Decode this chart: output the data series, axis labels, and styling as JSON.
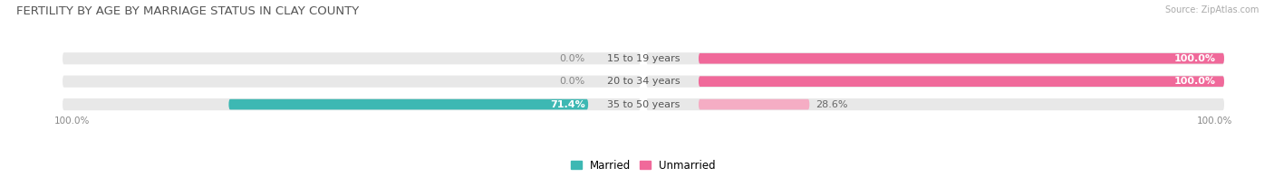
{
  "title": "FERTILITY BY AGE BY MARRIAGE STATUS IN CLAY COUNTY",
  "source": "Source: ZipAtlas.com",
  "categories": [
    "15 to 19 years",
    "20 to 34 years",
    "35 to 50 years"
  ],
  "married": [
    0.0,
    0.0,
    71.4
  ],
  "unmarried": [
    100.0,
    100.0,
    28.6
  ],
  "married_color": "#3db8b3",
  "unmarried_colors": [
    "#f0699a",
    "#f0699a",
    "#f5adc4"
  ],
  "bar_bg_color": "#e8e8e8",
  "bar_height": 0.52,
  "title_fontsize": 9.5,
  "label_fontsize": 8,
  "category_fontsize": 8,
  "xlim": 100,
  "legend_married": "Married",
  "legend_unmarried": "Unmarried",
  "bottom_left_label": "100.0%",
  "bottom_right_label": "100.0%"
}
